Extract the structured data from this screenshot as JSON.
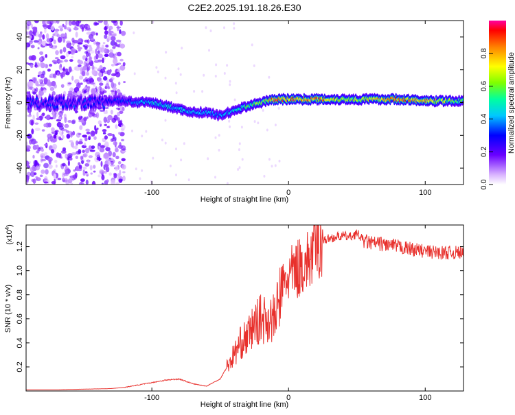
{
  "page_title": "C2E2.2025.191.18.26.E30",
  "chart_data": [
    {
      "type": "heatmap",
      "xlabel": "Height of straight line (km)",
      "ylabel": "Frequency (Hz)",
      "xlim": [
        -192,
        128
      ],
      "ylim": [
        -50,
        50
      ],
      "x_ticks": [
        -100,
        0,
        100
      ],
      "x_tick_labels": [
        "-100",
        "0",
        "100"
      ],
      "y_ticks": [
        -40,
        -20,
        0,
        20,
        40
      ],
      "y_tick_labels": [
        "-40",
        "-20",
        "0",
        "20",
        "40"
      ],
      "colorbar": {
        "label": "Normalized spectral amplitude",
        "range": [
          0,
          1
        ],
        "ticks": [
          0.0,
          0.2,
          0.4,
          0.6,
          0.8
        ],
        "tick_labels": [
          "0.0",
          "0.2",
          "0.4",
          "0.6",
          "0.8"
        ]
      },
      "ridge": {
        "x": [
          -135,
          -120,
          -110,
          -100,
          -90,
          -80,
          -70,
          -60,
          -50,
          -40,
          -30,
          -20,
          -15,
          -10,
          0,
          20,
          50,
          80,
          100,
          128
        ],
        "y": [
          1,
          1,
          0,
          0,
          -2,
          -4,
          -6,
          -6,
          -8,
          -5,
          -2,
          0,
          1,
          2,
          2,
          2,
          2,
          2,
          1,
          1
        ],
        "amplitude": [
          0.3,
          0.35,
          0.45,
          0.5,
          0.5,
          0.45,
          0.45,
          0.45,
          0.45,
          0.5,
          0.6,
          0.7,
          0.8,
          0.95,
          0.95,
          0.9,
          0.7,
          0.95,
          0.85,
          0.6
        ]
      },
      "noise_region_x": [
        -192,
        -120
      ]
    },
    {
      "type": "line",
      "xlabel": "Height of straight line (km)",
      "ylabel": "SNR (10 * v/v)",
      "multiplier_label": "(x10",
      "multiplier_exp": "4",
      "xlim": [
        -192,
        128
      ],
      "ylim": [
        0,
        1.38
      ],
      "x_ticks": [
        -100,
        0,
        100
      ],
      "x_tick_labels": [
        "-100",
        "0",
        "100"
      ],
      "y_ticks": [
        0.2,
        0.4,
        0.6,
        0.8,
        1.0,
        1.2
      ],
      "y_tick_labels": [
        "0.2",
        "0.4",
        "0.6",
        "0.8",
        "1.0",
        "1.2"
      ],
      "color": "#e8302c",
      "series": [
        {
          "x": [
            -192,
            -170,
            -150,
            -130,
            -120,
            -110,
            -100,
            -90,
            -80,
            -70,
            -60,
            -50,
            -45,
            -40,
            -35,
            -30,
            -25,
            -20,
            -15,
            -10,
            -5,
            0,
            5,
            10,
            15,
            20,
            25,
            30,
            35,
            40,
            45,
            50,
            55,
            60,
            70,
            80,
            90,
            100,
            110,
            120,
            128
          ],
          "y": [
            0.01,
            0.01,
            0.015,
            0.02,
            0.03,
            0.05,
            0.07,
            0.09,
            0.1,
            0.06,
            0.04,
            0.1,
            0.2,
            0.3,
            0.4,
            0.45,
            0.55,
            0.6,
            0.6,
            0.6,
            0.85,
            0.95,
            1.0,
            1.05,
            1.08,
            1.2,
            1.25,
            1.27,
            1.28,
            1.29,
            1.28,
            1.31,
            1.25,
            1.23,
            1.22,
            1.2,
            1.18,
            1.16,
            1.15,
            1.15,
            1.15
          ]
        }
      ]
    }
  ]
}
